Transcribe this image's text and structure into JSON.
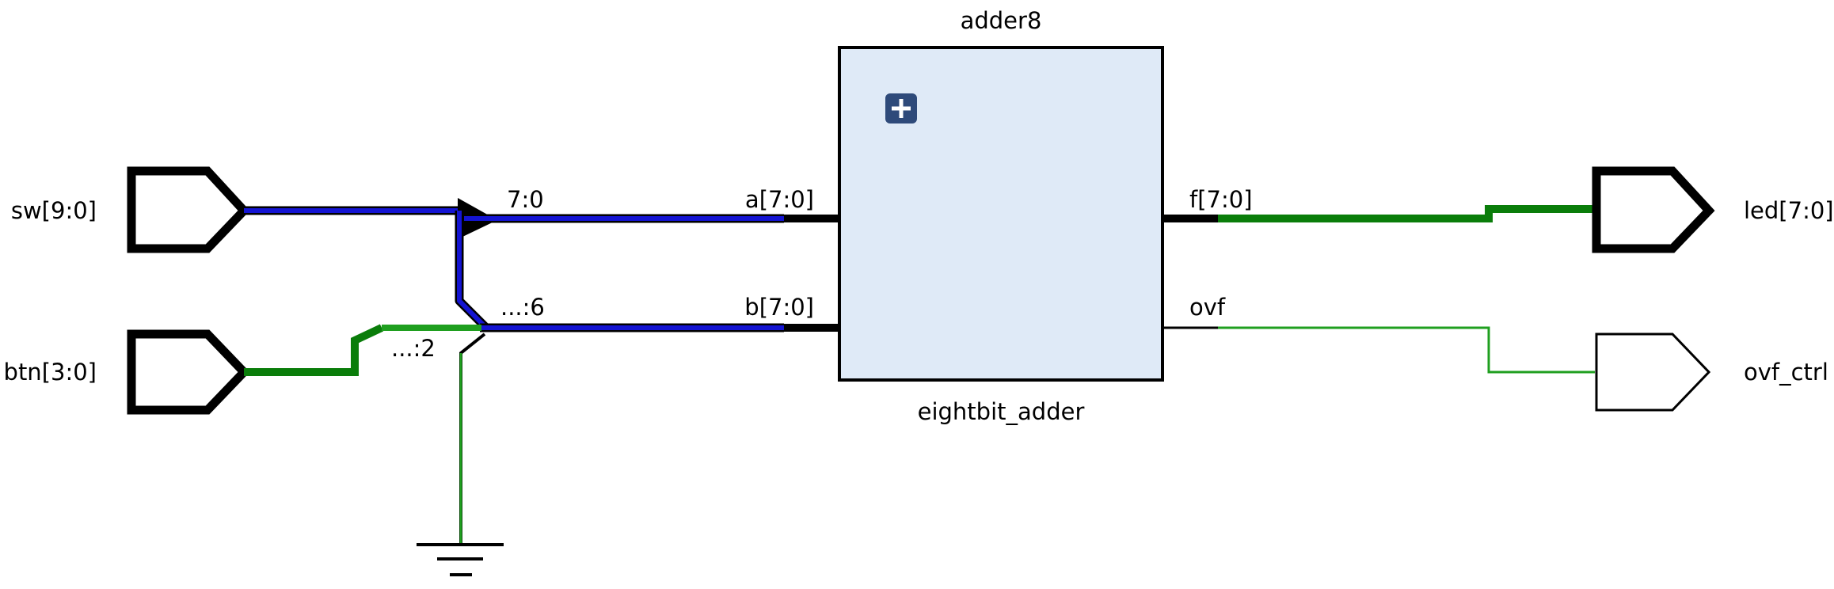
{
  "colors": {
    "bus_blue": "#1414d2",
    "wire_green": "#1f9f1f",
    "bus_green": "#0a7d0a",
    "stroke_black": "#000000",
    "cell_fill": "#dfeaf7",
    "expand_button": "#2e4a7a"
  },
  "cell": {
    "instance_name": "adder8",
    "module_name": "eightbit_adder",
    "expand_icon": "plus-icon",
    "ports": {
      "a": "a[7:0]",
      "b": "b[7:0]",
      "f": "f[7:0]",
      "ovf": "ovf"
    }
  },
  "inputs": {
    "sw": "sw[9:0]",
    "btn": "btn[3:0]"
  },
  "outputs": {
    "led": "led[7:0]",
    "ovf_ctrl": "ovf_ctrl"
  },
  "rip_labels": {
    "sw_slice": "7:0",
    "b_concat": "...:6",
    "btn_slice": "...:2"
  },
  "ground_icon": "ground-icon"
}
